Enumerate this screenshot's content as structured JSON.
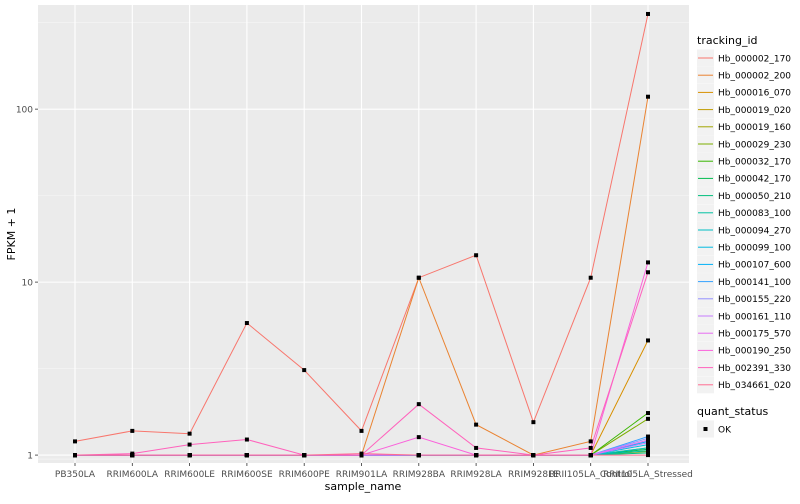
{
  "chart_data": {
    "type": "line",
    "xlabel": "sample_name",
    "ylabel": "FPKM + 1",
    "y_scale": "log10",
    "ylim": [
      0.9,
      400
    ],
    "y_ticks": [
      1,
      10,
      100
    ],
    "y_tick_labels": [
      "1",
      "10",
      "100"
    ],
    "categories": [
      "PB350LA",
      "RRIM600LA",
      "RRIM600LE",
      "RRIM600SE",
      "RRIM600PE",
      "RRIM901LA",
      "RRIM928BA",
      "RRIM928LA",
      "RRIM928LE",
      "RRII105LA_Control",
      "RRII105LA_Stressed"
    ],
    "grid": true,
    "legend_position": "right",
    "legend_title": "tracking_id",
    "series": [
      {
        "name": "Hb_000002_170",
        "color": "#F8766D",
        "values": [
          1.2,
          1.38,
          1.33,
          5.8,
          3.1,
          1.38,
          10.6,
          14.3,
          1.55,
          10.6,
          355
        ]
      },
      {
        "name": "Hb_000002_200",
        "color": "#EA8331",
        "values": [
          1,
          1,
          1,
          1,
          1,
          1,
          10.6,
          1.5,
          1,
          1.2,
          118
        ]
      },
      {
        "name": "Hb_000016_070",
        "color": "#D89000",
        "values": [
          1,
          1,
          1,
          1,
          1,
          1,
          1,
          1,
          1,
          1,
          4.6
        ]
      },
      {
        "name": "Hb_000019_020",
        "color": "#C09B00",
        "values": [
          1,
          1,
          1,
          1,
          1,
          1,
          1,
          1,
          1,
          1,
          1.1
        ]
      },
      {
        "name": "Hb_000019_160",
        "color": "#A3A500",
        "values": [
          1,
          1,
          1,
          1,
          1,
          1,
          1,
          1,
          1,
          1,
          1.05
        ]
      },
      {
        "name": "Hb_000029_230",
        "color": "#7CAE00",
        "values": [
          1,
          1,
          1,
          1,
          1,
          1,
          1,
          1,
          1,
          1,
          1.62
        ]
      },
      {
        "name": "Hb_000032_170",
        "color": "#39B600",
        "values": [
          1,
          1,
          1,
          1,
          1,
          1,
          1,
          1,
          1,
          1,
          1.75
        ]
      },
      {
        "name": "Hb_000042_170",
        "color": "#00BB4E",
        "values": [
          1,
          1,
          1,
          1,
          1,
          1,
          1,
          1,
          1,
          1,
          1.08
        ]
      },
      {
        "name": "Hb_000050_210",
        "color": "#00BF7D",
        "values": [
          1,
          1,
          1,
          1,
          1,
          1,
          1,
          1,
          1,
          1,
          1.03
        ]
      },
      {
        "name": "Hb_000083_100",
        "color": "#00C1A3",
        "values": [
          1,
          1,
          1,
          1,
          1,
          1,
          1,
          1,
          1,
          1,
          1.06
        ]
      },
      {
        "name": "Hb_000094_270",
        "color": "#00BFC4",
        "values": [
          1,
          1,
          1,
          1,
          1,
          1,
          1,
          1,
          1,
          1,
          1.1
        ]
      },
      {
        "name": "Hb_000099_100",
        "color": "#00BAE0",
        "values": [
          1,
          1,
          1,
          1,
          1,
          1,
          1,
          1,
          1,
          1,
          1.15
        ]
      },
      {
        "name": "Hb_000107_600",
        "color": "#00B0F6",
        "values": [
          1,
          1,
          1,
          1,
          1,
          1,
          1,
          1,
          1,
          1,
          1.2
        ]
      },
      {
        "name": "Hb_000141_100",
        "color": "#35A2FF",
        "values": [
          1,
          1,
          1,
          1,
          1,
          1,
          1,
          1,
          1,
          1,
          1.28
        ]
      },
      {
        "name": "Hb_000155_220",
        "color": "#9590FF",
        "values": [
          1,
          1,
          1,
          1,
          1,
          1,
          1,
          1,
          1,
          1,
          1.25
        ]
      },
      {
        "name": "Hb_000161_110",
        "color": "#C77CFF",
        "values": [
          1,
          1,
          1,
          1,
          1,
          1,
          1,
          1,
          1,
          1,
          1.18
        ]
      },
      {
        "name": "Hb_000175_570",
        "color": "#E76BF3",
        "values": [
          1,
          1,
          1,
          1,
          1,
          1,
          1,
          1,
          1,
          1,
          1.22
        ]
      },
      {
        "name": "Hb_000190_250",
        "color": "#FA62DB",
        "values": [
          1,
          1,
          1,
          1,
          1,
          1,
          1.27,
          1,
          1,
          1,
          13
        ]
      },
      {
        "name": "Hb_002391_330",
        "color": "#FF62BC",
        "values": [
          1,
          1.02,
          1.15,
          1.23,
          1,
          1,
          1.97,
          1.1,
          1,
          1.1,
          11.4
        ]
      },
      {
        "name": "Hb_034661_020",
        "color": "#FF6C91",
        "values": [
          1,
          1,
          1,
          1,
          1,
          1.02,
          1,
          1,
          1,
          1,
          1
        ]
      }
    ],
    "shape_legend": {
      "title": "quant_status",
      "items": [
        "OK"
      ]
    }
  }
}
